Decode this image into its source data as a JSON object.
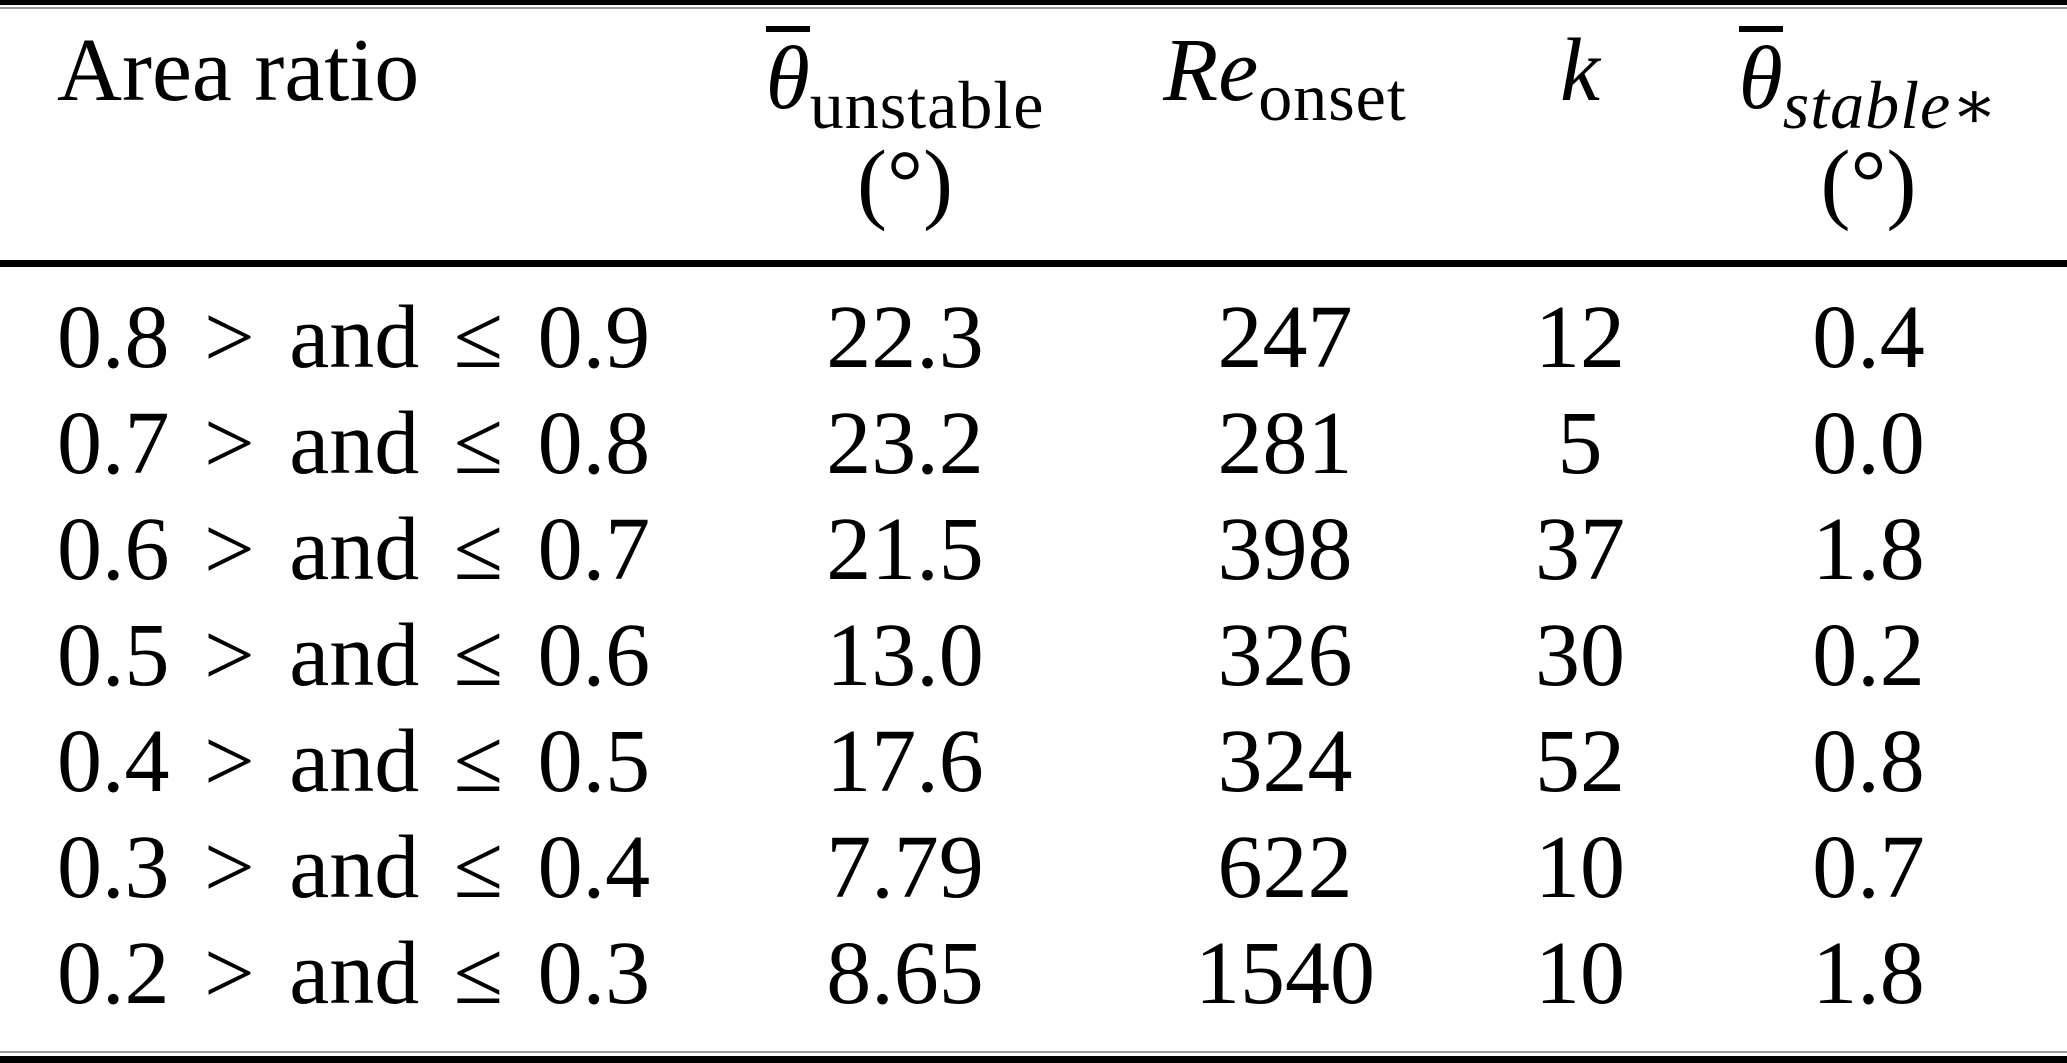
{
  "colors": {
    "background": "#ffffff",
    "text": "#000000",
    "rule": "#000000",
    "rule_faint": "#9a9a9a"
  },
  "table": {
    "header": {
      "area_ratio": {
        "label": "Area ratio"
      },
      "theta_unstable": {
        "symbol": "θ",
        "overline": true,
        "subscript": "unstable",
        "unit": "(°)"
      },
      "re_onset": {
        "symbol": "Re",
        "subscript": "onset"
      },
      "k": {
        "symbol": "k"
      },
      "theta_stable": {
        "symbol": "θ",
        "overline": true,
        "subscript": "stable∗",
        "unit": "(°)"
      }
    },
    "rows": [
      {
        "area_ratio": "0.8 > and ≤ 0.9",
        "theta_unstable": "22.3",
        "re_onset": "247",
        "k": "12",
        "theta_stable": "0.4"
      },
      {
        "area_ratio": "0.7 > and ≤ 0.8",
        "theta_unstable": "23.2",
        "re_onset": "281",
        "k": "5",
        "theta_stable": "0.0"
      },
      {
        "area_ratio": "0.6 > and ≤ 0.7",
        "theta_unstable": "21.5",
        "re_onset": "398",
        "k": "37",
        "theta_stable": "1.8"
      },
      {
        "area_ratio": "0.5 > and ≤ 0.6",
        "theta_unstable": "13.0",
        "re_onset": "326",
        "k": "30",
        "theta_stable": "0.2"
      },
      {
        "area_ratio": "0.4 > and ≤ 0.5",
        "theta_unstable": "17.6",
        "re_onset": "324",
        "k": "52",
        "theta_stable": "0.8"
      },
      {
        "area_ratio": "0.3 > and ≤ 0.4",
        "theta_unstable": "7.79",
        "re_onset": "622",
        "k": "10",
        "theta_stable": "0.7"
      },
      {
        "area_ratio": "0.2 > and ≤ 0.3",
        "theta_unstable": "8.65",
        "re_onset": "1540",
        "k": "10",
        "theta_stable": "1.8"
      }
    ]
  },
  "chart_data": {
    "type": "table",
    "columns": [
      "Area ratio",
      "θ̄_unstable (°)",
      "Re_onset",
      "k",
      "θ̄_stable∗ (°)"
    ],
    "rows": [
      [
        "0.8 > and ≤ 0.9",
        22.3,
        247,
        12,
        0.4
      ],
      [
        "0.7 > and ≤ 0.8",
        23.2,
        281,
        5,
        0.0
      ],
      [
        "0.6 > and ≤ 0.7",
        21.5,
        398,
        37,
        1.8
      ],
      [
        "0.5 > and ≤ 0.6",
        13.0,
        326,
        30,
        0.2
      ],
      [
        "0.4 > and ≤ 0.5",
        17.6,
        324,
        52,
        0.8
      ],
      [
        "0.3 > and ≤ 0.4",
        7.79,
        622,
        10,
        0.7
      ],
      [
        "0.2 > and ≤ 0.3",
        8.65,
        1540,
        10,
        1.8
      ]
    ]
  }
}
